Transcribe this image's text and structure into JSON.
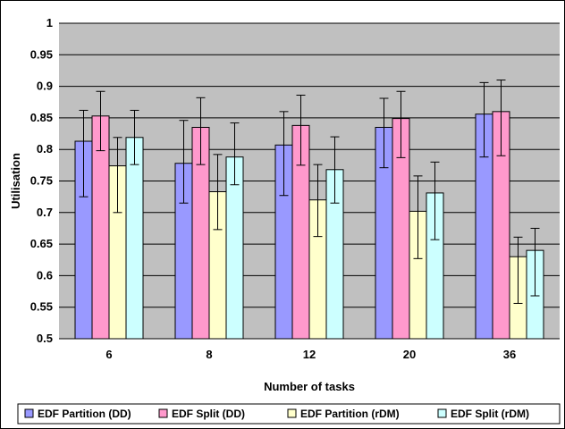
{
  "chart_data": {
    "type": "bar",
    "title": "",
    "xlabel": "Number of tasks",
    "ylabel": "Utilisation",
    "ylim": [
      0.5,
      1
    ],
    "yticks": [
      "0.5",
      "0.55",
      "0.6",
      "0.65",
      "0.7",
      "0.75",
      "0.8",
      "0.85",
      "0.9",
      "0.95",
      "1"
    ],
    "categories": [
      "6",
      "8",
      "12",
      "20",
      "36"
    ],
    "grid": true,
    "legend_position": "bottom",
    "plot_background": "#c0c0c0",
    "series": [
      {
        "name": "EDF Partition (DD)",
        "color": "#9999ff",
        "values": [
          0.813,
          0.778,
          0.807,
          0.835,
          0.856
        ],
        "err_low": [
          0.725,
          0.715,
          0.727,
          0.771,
          0.788
        ],
        "err_high": [
          0.862,
          0.846,
          0.86,
          0.881,
          0.906
        ]
      },
      {
        "name": "EDF Split (DD)",
        "color": "#ff99cc",
        "values": [
          0.853,
          0.835,
          0.838,
          0.849,
          0.86
        ],
        "err_low": [
          0.798,
          0.776,
          0.775,
          0.787,
          0.79
        ],
        "err_high": [
          0.892,
          0.882,
          0.886,
          0.892,
          0.91
        ]
      },
      {
        "name": "EDF Partition (rDM)",
        "color": "#ffffcc",
        "values": [
          0.774,
          0.733,
          0.72,
          0.702,
          0.63
        ],
        "err_low": [
          0.7,
          0.673,
          0.662,
          0.627,
          0.556
        ],
        "err_high": [
          0.819,
          0.792,
          0.776,
          0.758,
          0.661
        ]
      },
      {
        "name": "EDF Split (rDM)",
        "color": "#ccffff",
        "values": [
          0.819,
          0.788,
          0.768,
          0.731,
          0.64
        ],
        "err_low": [
          0.776,
          0.744,
          0.715,
          0.657,
          0.568
        ],
        "err_high": [
          0.862,
          0.842,
          0.82,
          0.78,
          0.675
        ]
      }
    ]
  }
}
